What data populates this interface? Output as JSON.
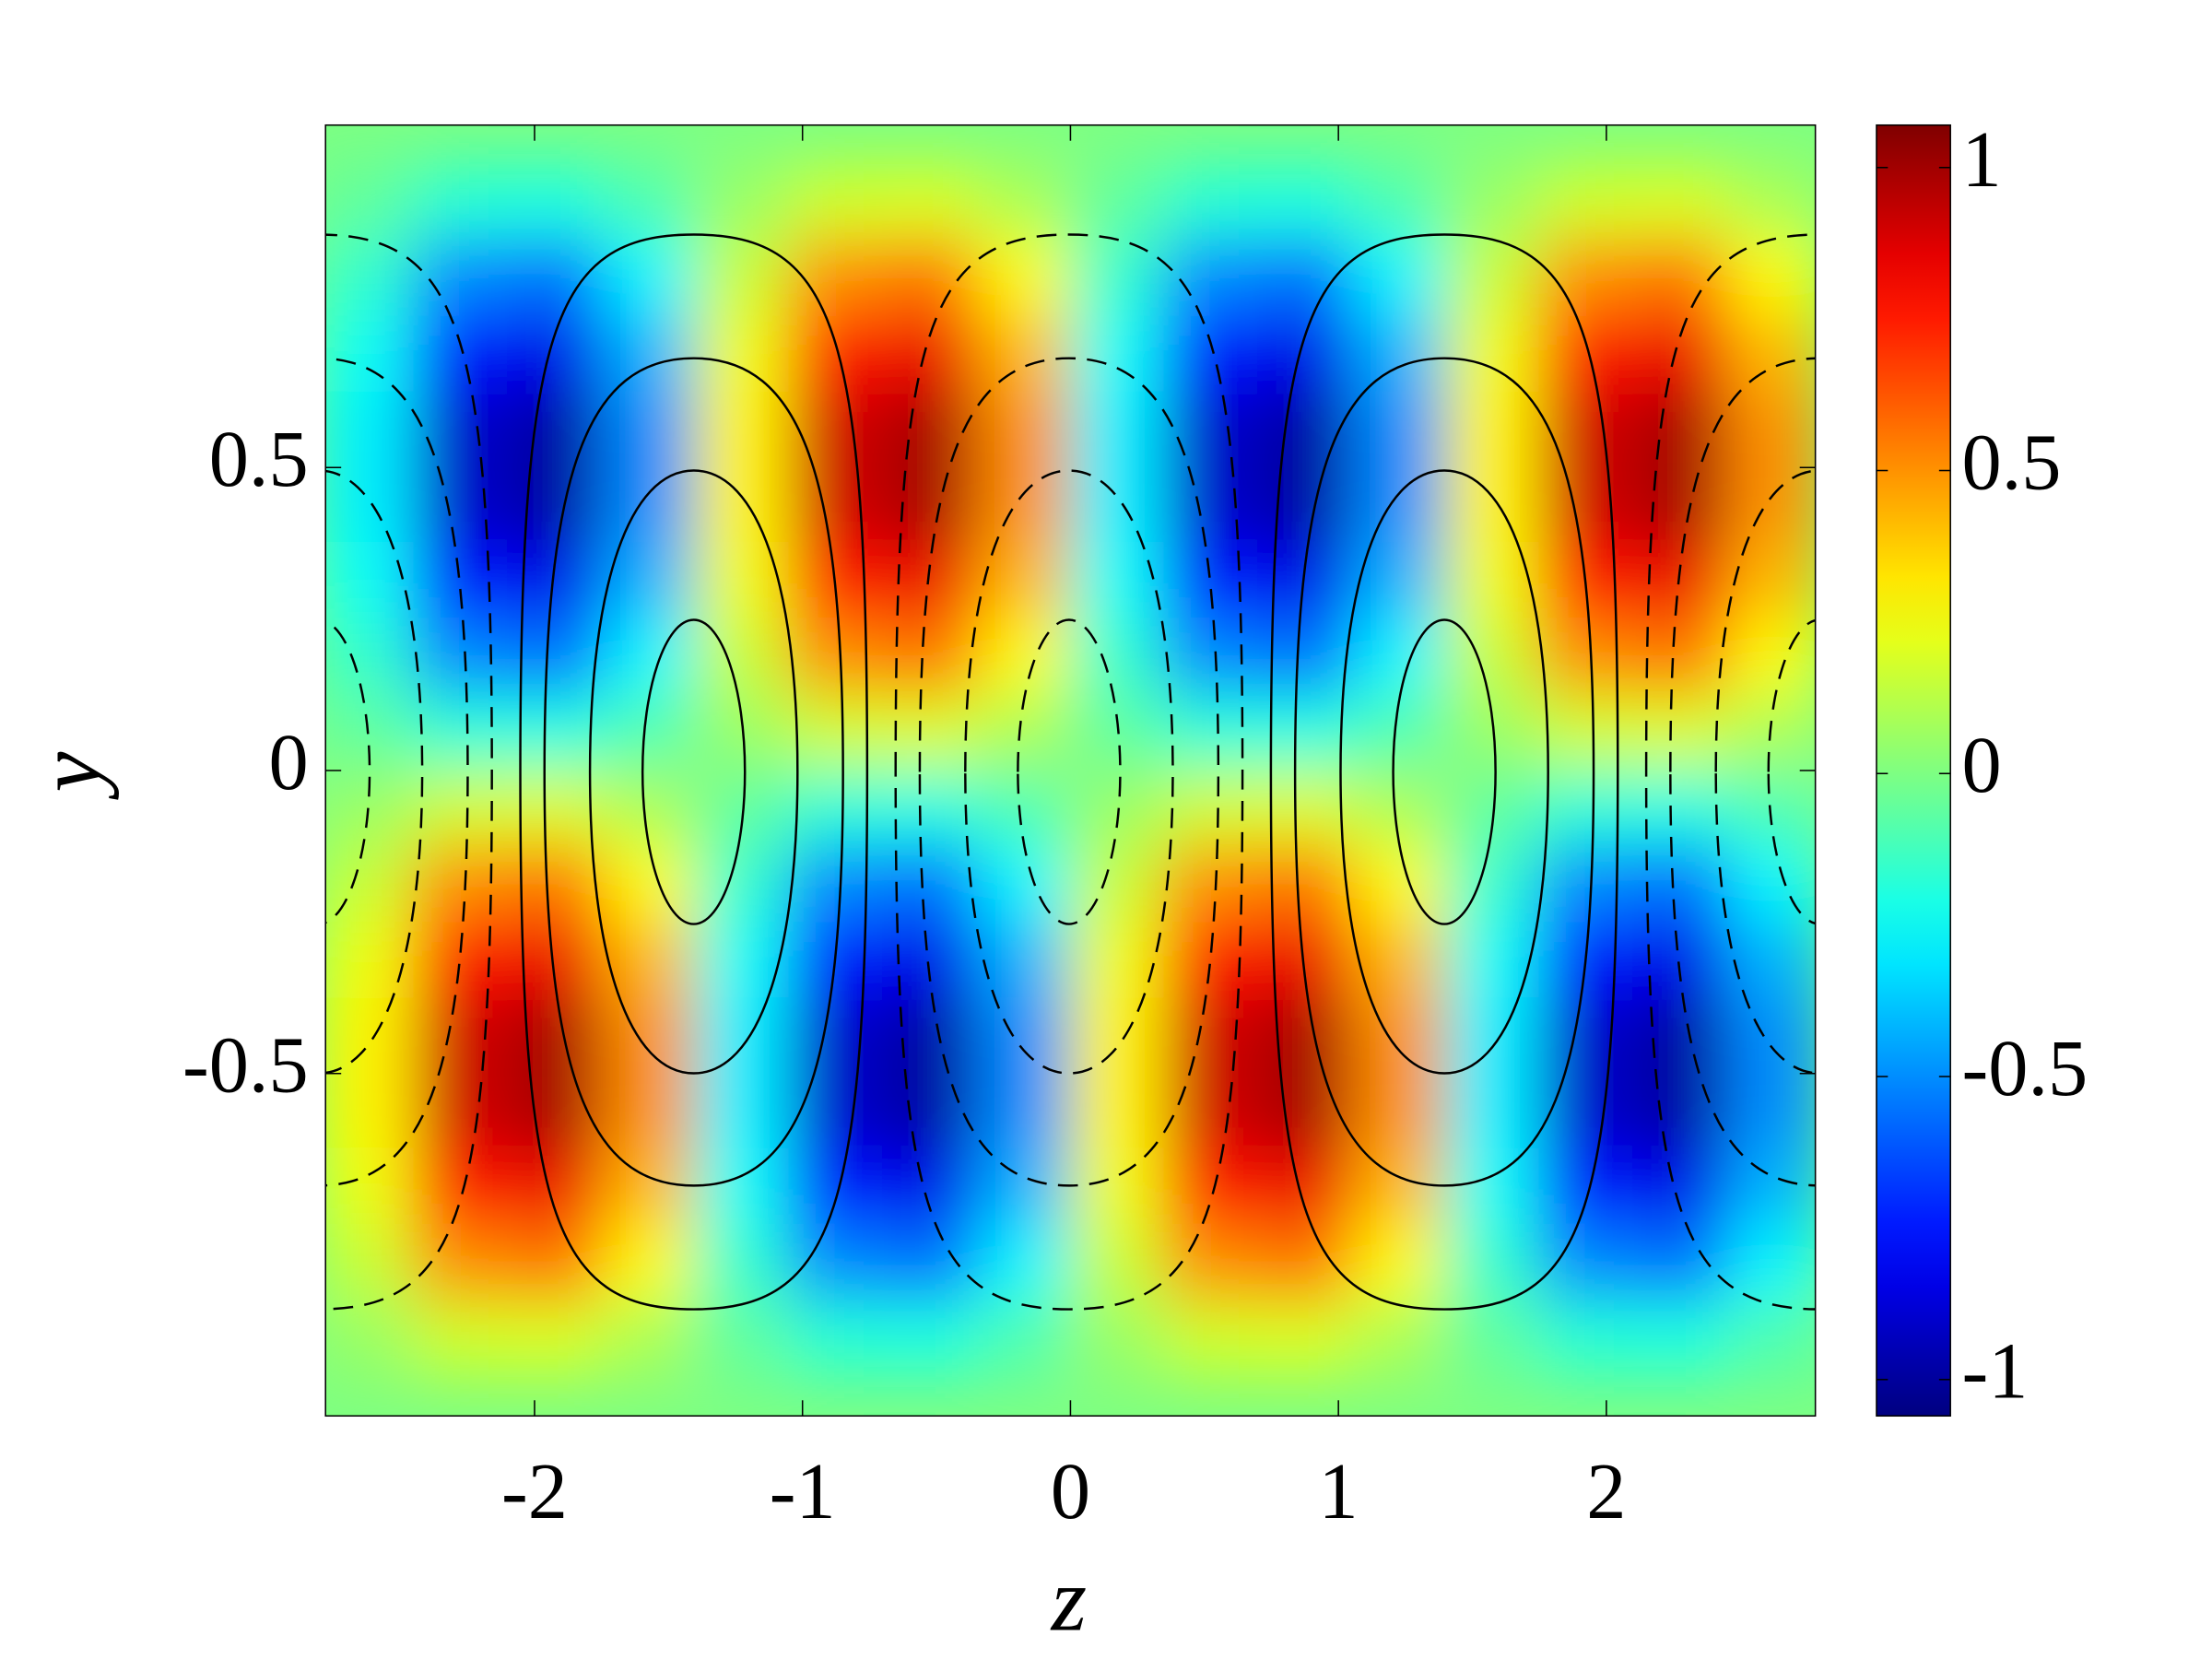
{
  "chart_data": {
    "type": "heatmap",
    "colormap": "jet",
    "xlabel": "z",
    "ylabel": "y",
    "x": [
      -2.625,
      -2.275,
      -1.925,
      -1.575,
      -1.225,
      -0.875,
      -0.525,
      -0.175,
      0.175,
      0.525,
      0.875,
      1.225,
      1.575,
      1.925,
      2.275,
      2.625
    ],
    "y": [
      0.9375,
      0.8125,
      0.6875,
      0.5625,
      0.4375,
      0.3125,
      0.1875,
      0.0625,
      -0.0625,
      -0.1875,
      -0.3125,
      -0.4375,
      -0.5625,
      -0.6875,
      -0.8125,
      -0.9375
    ],
    "values": [
      [
        -0.06,
        -0.18,
        -0.2,
        -0.1,
        0.06,
        0.18,
        0.2,
        0.1,
        -0.06,
        -0.18,
        -0.2,
        -0.1,
        0.06,
        0.18,
        0.2,
        0.1
      ],
      [
        -0.16,
        -0.51,
        -0.56,
        -0.28,
        0.16,
        0.51,
        0.56,
        0.28,
        -0.16,
        -0.51,
        -0.56,
        -0.28,
        0.16,
        0.51,
        0.56,
        0.28
      ],
      [
        -0.24,
        -0.76,
        -0.84,
        -0.42,
        0.24,
        0.76,
        0.84,
        0.42,
        -0.24,
        -0.76,
        -0.84,
        -0.42,
        0.24,
        0.76,
        0.84,
        0.42
      ],
      [
        -0.29,
        -0.9,
        -0.99,
        -0.5,
        0.29,
        0.9,
        0.99,
        0.5,
        -0.29,
        -0.9,
        -0.99,
        -0.5,
        0.29,
        0.9,
        0.99,
        0.5
      ],
      [
        -0.29,
        -0.9,
        -0.99,
        -0.5,
        0.29,
        0.9,
        0.99,
        0.5,
        -0.29,
        -0.9,
        -0.99,
        -0.5,
        0.29,
        0.9,
        0.99,
        0.5
      ],
      [
        -0.24,
        -0.76,
        -0.84,
        -0.42,
        0.24,
        0.76,
        0.84,
        0.42,
        -0.24,
        -0.76,
        -0.84,
        -0.42,
        0.24,
        0.76,
        0.84,
        0.42
      ],
      [
        -0.16,
        -0.51,
        -0.56,
        -0.28,
        0.16,
        0.51,
        0.56,
        0.28,
        -0.16,
        -0.51,
        -0.56,
        -0.28,
        0.16,
        0.51,
        0.56,
        0.28
      ],
      [
        -0.06,
        -0.18,
        -0.2,
        -0.1,
        0.06,
        0.18,
        0.2,
        0.1,
        -0.06,
        -0.18,
        -0.2,
        -0.1,
        0.06,
        0.18,
        0.2,
        0.1
      ],
      [
        0.06,
        0.18,
        0.2,
        0.1,
        -0.06,
        -0.18,
        -0.2,
        -0.1,
        0.06,
        0.18,
        0.2,
        0.1,
        -0.06,
        -0.18,
        -0.2,
        -0.1
      ],
      [
        0.16,
        0.51,
        0.56,
        0.28,
        -0.16,
        -0.51,
        -0.56,
        -0.28,
        0.16,
        0.51,
        0.56,
        0.28,
        -0.16,
        -0.51,
        -0.56,
        -0.28
      ],
      [
        0.24,
        0.76,
        0.84,
        0.42,
        -0.24,
        -0.76,
        -0.84,
        -0.42,
        0.24,
        0.76,
        0.84,
        0.42,
        -0.24,
        -0.76,
        -0.84,
        -0.42
      ],
      [
        0.29,
        0.9,
        0.99,
        0.5,
        -0.29,
        -0.9,
        -0.99,
        -0.5,
        0.29,
        0.9,
        0.99,
        0.5,
        -0.29,
        -0.9,
        -0.99,
        -0.5
      ],
      [
        0.29,
        0.9,
        0.99,
        0.5,
        -0.29,
        -0.9,
        -0.99,
        -0.5,
        0.29,
        0.9,
        0.99,
        0.5,
        -0.29,
        -0.9,
        -0.99,
        -0.5
      ],
      [
        0.24,
        0.76,
        0.84,
        0.42,
        -0.24,
        -0.76,
        -0.84,
        -0.42,
        0.24,
        0.76,
        0.84,
        0.42,
        -0.24,
        -0.76,
        -0.84,
        -0.42
      ],
      [
        0.16,
        0.51,
        0.56,
        0.28,
        -0.16,
        -0.51,
        -0.56,
        -0.28,
        0.16,
        0.51,
        0.56,
        0.28,
        -0.16,
        -0.51,
        -0.56,
        -0.28
      ],
      [
        0.06,
        0.18,
        0.2,
        0.1,
        -0.06,
        -0.18,
        -0.2,
        -0.1,
        0.06,
        0.18,
        0.2,
        0.1,
        -0.06,
        -0.18,
        -0.2,
        -0.1
      ]
    ],
    "xlim": [
      -2.78,
      2.78
    ],
    "ylim": [
      -1.065,
      1.065
    ],
    "xticks": [
      -2,
      -1,
      0,
      1,
      2
    ],
    "yticks": [
      -0.5,
      0,
      0.5
    ],
    "clim": [
      -1.06,
      1.07
    ],
    "cticks": [
      -1,
      -0.5,
      0,
      0.5,
      1
    ]
  }
}
